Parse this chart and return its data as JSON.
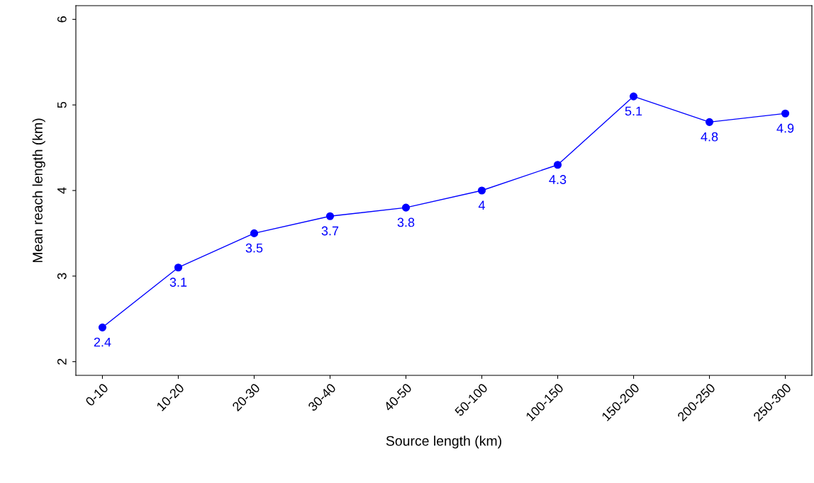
{
  "chart_data": {
    "type": "line",
    "xlabel": "Source length (km)",
    "ylabel": "Mean reach length (km)",
    "categories": [
      "0-10",
      "10-20",
      "20-30",
      "30-40",
      "40-50",
      "50-100",
      "100-150",
      "150-200",
      "200-250",
      "250-300"
    ],
    "series": [
      {
        "color": "#0000ff",
        "values": [
          2.4,
          3.1,
          3.5,
          3.7,
          3.8,
          4.0,
          4.3,
          5.1,
          4.8,
          4.9
        ]
      }
    ],
    "ylim": [
      1.84,
      6.16
    ],
    "yticks": [
      2,
      3,
      4,
      5,
      6
    ],
    "data_labels": true,
    "marker": "circle",
    "line_style": "solid"
  }
}
